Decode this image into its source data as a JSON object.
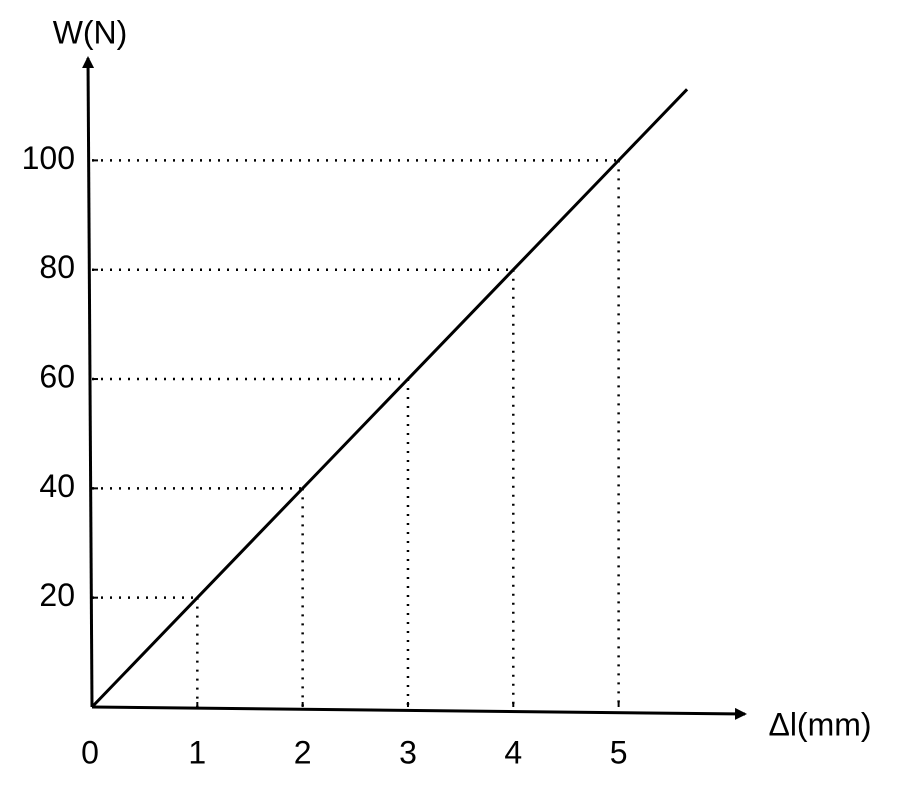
{
  "chart_data": {
    "type": "line",
    "y_label": "W(N)",
    "x_label": "Δl(mm)",
    "x": [
      0,
      1,
      2,
      3,
      4,
      5,
      5.65
    ],
    "values": [
      0,
      20,
      40,
      60,
      80,
      100,
      113
    ],
    "color": "#000000",
    "xlim": [
      0,
      6.2
    ],
    "ylim": [
      0,
      118
    ],
    "xticks": [
      0,
      1,
      2,
      3,
      4,
      5
    ],
    "yticks": [
      20,
      40,
      60,
      80,
      100
    ],
    "guides": true
  }
}
